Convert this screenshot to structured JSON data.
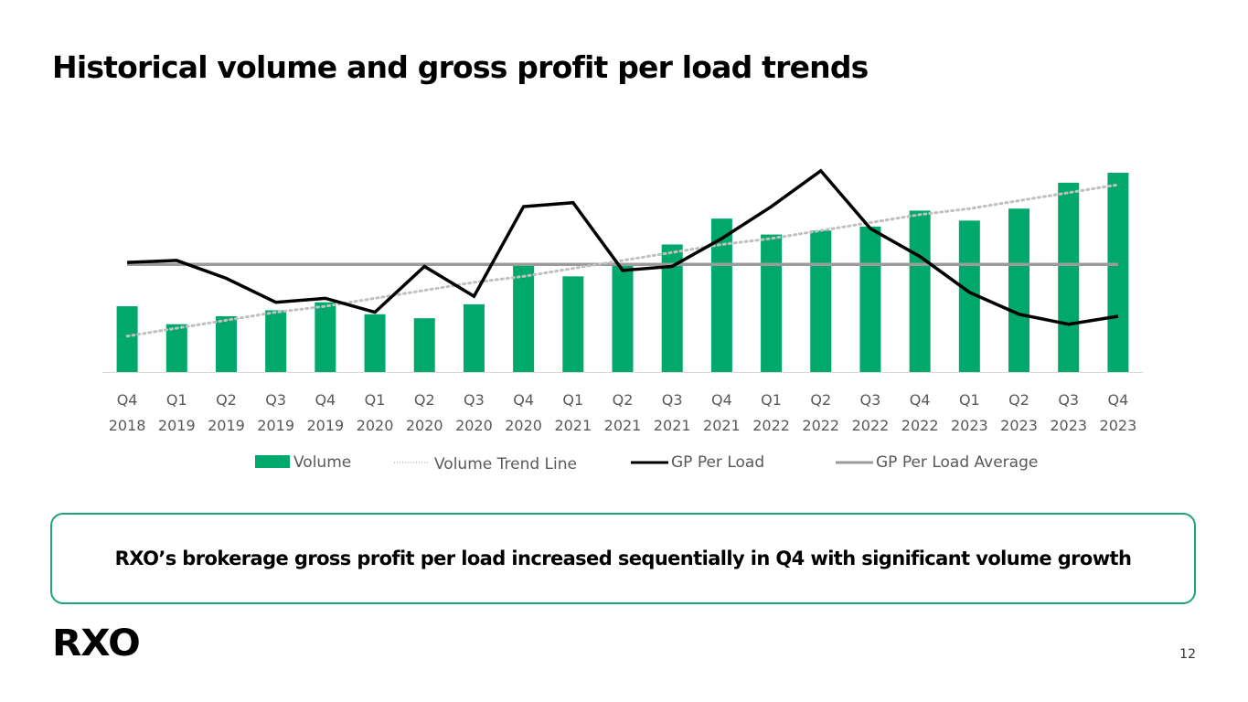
{
  "slide": {
    "title": "Historical volume and gross profit per load trends",
    "callout": "RXO’s brokerage gross profit per load increased sequentially in Q4 with significant volume growth",
    "logo": "RXO",
    "page_number": "12"
  },
  "colors": {
    "volume": "#00a86b",
    "gp_line": "#000000",
    "gp_average": "#9b9b9b",
    "trend": "#c0c0c0",
    "callout_border": "#1ea672"
  },
  "chart_data": {
    "type": "bar",
    "title": "",
    "xlabel": "",
    "ylabel": "",
    "note": "No y-axis shown; values are relative (tallest volume bar = 100, GP per load scaled on same relative axis)",
    "categories": [
      [
        "Q4",
        "2018"
      ],
      [
        "Q1",
        "2019"
      ],
      [
        "Q2",
        "2019"
      ],
      [
        "Q3",
        "2019"
      ],
      [
        "Q4",
        "2019"
      ],
      [
        "Q1",
        "2020"
      ],
      [
        "Q2",
        "2020"
      ],
      [
        "Q3",
        "2020"
      ],
      [
        "Q4",
        "2020"
      ],
      [
        "Q1",
        "2021"
      ],
      [
        "Q2",
        "2021"
      ],
      [
        "Q3",
        "2021"
      ],
      [
        "Q4",
        "2021"
      ],
      [
        "Q1",
        "2022"
      ],
      [
        "Q2",
        "2022"
      ],
      [
        "Q3",
        "2022"
      ],
      [
        "Q4",
        "2022"
      ],
      [
        "Q1",
        "2023"
      ],
      [
        "Q2",
        "2023"
      ],
      [
        "Q3",
        "2023"
      ],
      [
        "Q4",
        "2023"
      ]
    ],
    "ylim": [
      0,
      105
    ],
    "series": [
      {
        "name": "Volume",
        "type": "bar",
        "values": [
          33,
          24,
          28,
          31,
          35,
          29,
          27,
          34,
          54,
          48,
          54,
          64,
          77,
          69,
          71,
          73,
          81,
          76,
          82,
          95,
          100
        ]
      },
      {
        "name": "Volume Trend Line",
        "type": "line-dotted",
        "values": [
          18,
          22,
          26,
          30,
          33,
          37,
          41,
          45,
          48,
          52,
          56,
          60,
          64,
          67,
          71,
          75,
          79,
          82,
          86,
          90,
          94
        ]
      },
      {
        "name": "GP Per Load",
        "type": "line",
        "values": [
          55,
          56,
          47,
          35,
          37,
          30,
          53,
          38,
          83,
          85,
          51,
          53,
          67,
          83,
          101,
          72,
          58,
          40,
          29,
          24,
          28
        ]
      },
      {
        "name": "GP Per Load Average",
        "type": "line",
        "values": [
          54,
          54,
          54,
          54,
          54,
          54,
          54,
          54,
          54,
          54,
          54,
          54,
          54,
          54,
          54,
          54,
          54,
          54,
          54,
          54,
          54
        ]
      }
    ],
    "legend": {
      "position": "bottom",
      "items": [
        "Volume",
        "Volume Trend Line",
        "GP Per Load",
        "GP Per Load Average"
      ]
    },
    "grid": false
  }
}
